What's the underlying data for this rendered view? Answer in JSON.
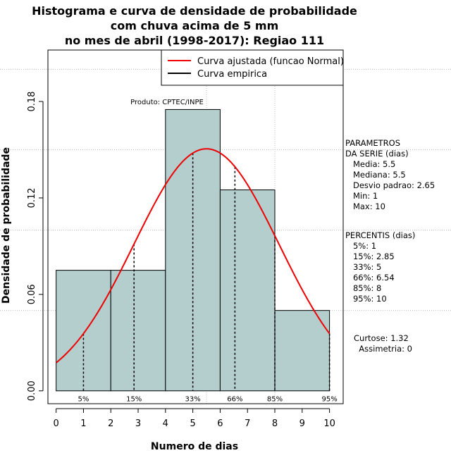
{
  "chart_data": {
    "type": "bar",
    "title_lines": [
      "Histograma e curva de densidade de probabilidade",
      "com chuva acima de 5 mm",
      "no mes de abril (1998-2017): Regiao 111"
    ],
    "xlabel": "Numero de dias",
    "ylabel": "Densidade de probabilidade",
    "xlim": [
      -0.3,
      10.5
    ],
    "ylim": [
      -0.008,
      0.212
    ],
    "x_ticks": [
      0,
      1,
      2,
      3,
      4,
      5,
      6,
      7,
      8,
      9,
      10
    ],
    "y_ticks": [
      0.0,
      0.06,
      0.12,
      0.18
    ],
    "y_tick_labels": [
      "0.00",
      "0.06",
      "0.12",
      "0.18"
    ],
    "grid": true,
    "bars": [
      {
        "x0": 0,
        "x1": 2,
        "value": 0.075
      },
      {
        "x0": 2,
        "x1": 4,
        "value": 0.075
      },
      {
        "x0": 4,
        "x1": 6,
        "value": 0.175
      },
      {
        "x0": 6,
        "x1": 8,
        "value": 0.125
      },
      {
        "x0": 8,
        "x1": 10,
        "value": 0.05
      }
    ],
    "bar_color": "#b4cdcd",
    "curve": {
      "name": "Curva ajustada (funcao Normal)",
      "mean": 5.5,
      "sd": 2.65,
      "x_range": [
        0,
        10
      ],
      "color": "#ee0000"
    },
    "empirical": {
      "name": "Curva empirica",
      "color": "#000000"
    },
    "percentile_lines": [
      {
        "label": "5%",
        "x": 1
      },
      {
        "label": "15%",
        "x": 2.85
      },
      {
        "label": "33%",
        "x": 5
      },
      {
        "label": "66%",
        "x": 6.54
      },
      {
        "label": "85%",
        "x": 8
      },
      {
        "label": "95%",
        "x": 10
      }
    ],
    "legend_placement": "top-right",
    "annotation": "Produto: CPTEC/INPE"
  },
  "side_panel": {
    "params_lines": [
      "PARAMETROS",
      "DA SERIE (dias)",
      "   Media: 5.5",
      "   Mediana: 5.5",
      "   Desvio padrao: 2.65",
      "   Min: 1",
      "   Max: 10"
    ],
    "percentis_lines": [
      "PERCENTIS (dias)",
      "   5%: 1",
      "   15%: 2.85",
      "   33%: 5",
      "   66%: 6.54",
      "   85%: 8",
      "   95%: 10"
    ],
    "shape_lines": [
      "Curtose: 1.32",
      "  Assimetria: 0"
    ]
  }
}
